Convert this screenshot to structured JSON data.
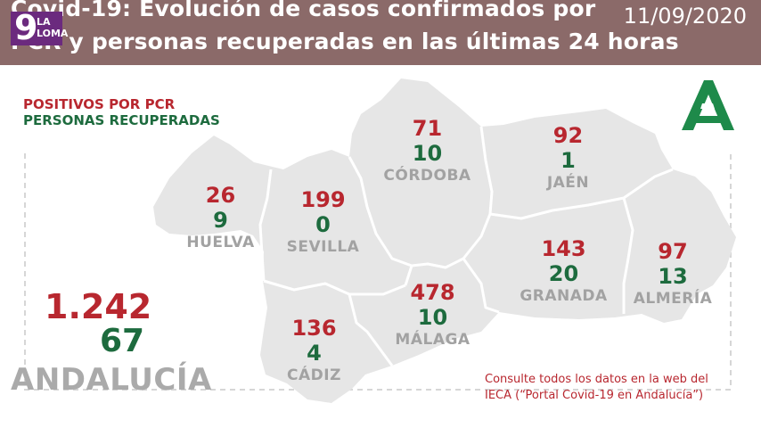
{
  "header": {
    "title_line1": "Covid-19: Evolución de casos confirmados por",
    "title_line2": "PCR y personas recuperadas en las últimas 24 horas",
    "date": "11/09/2020",
    "channel_logo_number": "9",
    "channel_logo_text": "LA LOMA"
  },
  "legend": {
    "pcr_label": "POSITIVOS POR PCR",
    "recovered_label": "PERSONAS RECUPERADAS"
  },
  "provinces": [
    {
      "name": "HUELVA",
      "pcr": "26",
      "recovered": "9"
    },
    {
      "name": "SEVILLA",
      "pcr": "199",
      "recovered": "0"
    },
    {
      "name": "CÓRDOBA",
      "pcr": "71",
      "recovered": "10"
    },
    {
      "name": "JAÉN",
      "pcr": "92",
      "recovered": "1"
    },
    {
      "name": "GRANADA",
      "pcr": "143",
      "recovered": "20"
    },
    {
      "name": "ALMERÍA",
      "pcr": "97",
      "recovered": "13"
    },
    {
      "name": "MÁLAGA",
      "pcr": "478",
      "recovered": "10"
    },
    {
      "name": "CÁDIZ",
      "pcr": "136",
      "recovered": "4"
    }
  ],
  "totals": {
    "region": "ANDALUCÍA",
    "pcr": "1.242",
    "recovered": "67"
  },
  "footer_note": {
    "line1": "Consulte todos los datos en la web del",
    "line2": "IECA (“Portal Covid-19 en Andalucía”)"
  },
  "colors": {
    "header_bg": "#8b6a69",
    "pcr": "#b8272f",
    "recovered": "#1d6b3e",
    "map_fill": "#e6e6e6",
    "logo": "#6b2a7e"
  },
  "icons": {
    "channel_logo": "la-loma-9-logo",
    "junta_logo": "junta-de-andalucia-logo"
  }
}
